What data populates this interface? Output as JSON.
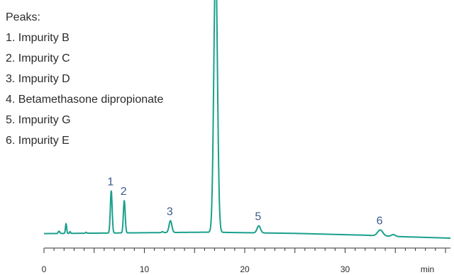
{
  "chart_data": {
    "type": "line",
    "xlabel": "min",
    "xlim": [
      0,
      40.5
    ],
    "ylim": [
      0,
      100
    ],
    "x_ticks": [
      0,
      10,
      20,
      30
    ],
    "line_color": "#1aa08c",
    "label_color": "#3a5a8c",
    "legend_title": "Peaks:",
    "legend_items": [
      "1. Impurity B",
      "2. Impurity C",
      "3. Impurity D",
      "4. Betamethasone dipropionate",
      "5. Impurity G",
      "6. Impurity E"
    ],
    "baseline": [
      [
        0,
        2.0
      ],
      [
        15.5,
        2.6
      ],
      [
        16.5,
        2.6
      ],
      [
        17.2,
        2.6
      ],
      [
        18.5,
        2.5
      ],
      [
        25,
        2.1
      ],
      [
        32,
        1.3
      ],
      [
        34.5,
        0.8
      ],
      [
        40.5,
        0.0
      ]
    ],
    "peaks": [
      {
        "label": "1",
        "rt": 6.7,
        "height": 18.5,
        "width": 0.09
      },
      {
        "label": "2",
        "rt": 8.0,
        "height": 14.2,
        "width": 0.09
      },
      {
        "label": "3",
        "rt": 12.6,
        "height": 5.2,
        "width": 0.14
      },
      {
        "label": "4",
        "rt": 17.1,
        "height": 120,
        "width": 0.18
      },
      {
        "label": "5",
        "rt": 21.4,
        "height": 3.1,
        "width": 0.17
      },
      {
        "label": "6",
        "rt": 33.5,
        "height": 2.6,
        "width": 0.26
      }
    ],
    "minor_peaks": [
      {
        "rt": 1.5,
        "height": 1.0,
        "width": 0.08
      },
      {
        "rt": 2.2,
        "height": 4.3,
        "width": 0.06
      },
      {
        "rt": 2.6,
        "height": 0.8,
        "width": 0.05
      },
      {
        "rt": 4.2,
        "height": 0.4,
        "width": 0.06
      },
      {
        "rt": 11.8,
        "height": 0.4,
        "width": 0.08
      },
      {
        "rt": 34.8,
        "height": 0.8,
        "width": 0.2
      }
    ]
  }
}
